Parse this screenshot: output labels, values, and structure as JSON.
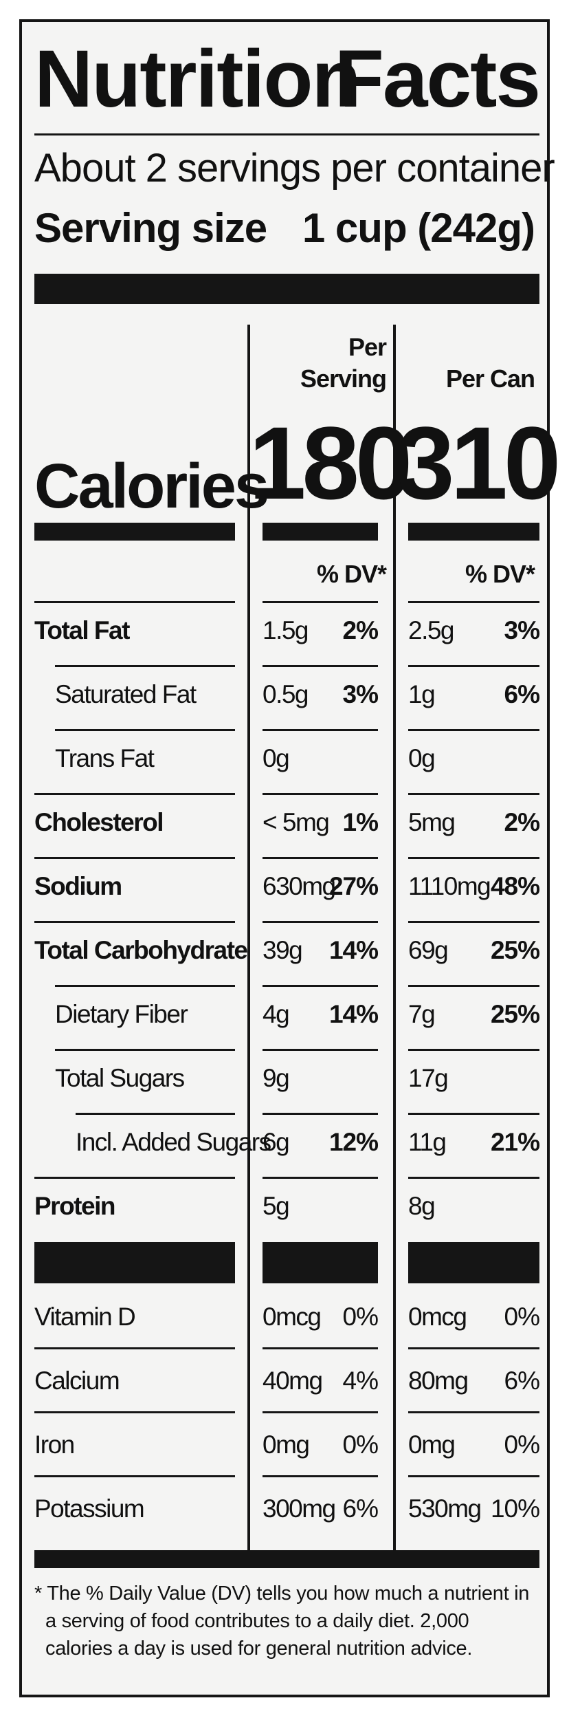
{
  "title_left": "Nutrition",
  "title_right": "Facts",
  "servings_per_container": "About 2 servings per container",
  "serving_size_label": "Serving size",
  "serving_size_value": "1 cup (242g)",
  "columns": {
    "per_serving": [
      "Per",
      "Serving"
    ],
    "per_can": "Per Can"
  },
  "calories": {
    "label": "Calories",
    "per_serving": "180",
    "per_can": "310"
  },
  "dv_header": "% DV*",
  "nutrients": [
    {
      "name": "Total Fat",
      "bold": true,
      "indent": 0,
      "serving_amount": "1.5g",
      "serving_dv": "2%",
      "can_amount": "2.5g",
      "can_dv": "3%"
    },
    {
      "name": "Saturated Fat",
      "bold": false,
      "indent": 1,
      "serving_amount": "0.5g",
      "serving_dv": "3%",
      "can_amount": "1g",
      "can_dv": "6%"
    },
    {
      "name": "Trans Fat",
      "bold": false,
      "indent": 1,
      "serving_amount": "0g",
      "serving_dv": "",
      "can_amount": "0g",
      "can_dv": ""
    },
    {
      "name": "Cholesterol",
      "bold": true,
      "indent": 0,
      "serving_amount": "< 5mg",
      "serving_dv": "1%",
      "can_amount": "5mg",
      "can_dv": "2%"
    },
    {
      "name": "Sodium",
      "bold": true,
      "indent": 0,
      "serving_amount": "630mg",
      "serving_dv": "27%",
      "can_amount": "1110mg",
      "can_dv": "48%"
    },
    {
      "name": "Total Carbohydrate",
      "bold": true,
      "indent": 0,
      "serving_amount": "39g",
      "serving_dv": "14%",
      "can_amount": "69g",
      "can_dv": "25%"
    },
    {
      "name": "Dietary Fiber",
      "bold": false,
      "indent": 1,
      "serving_amount": "4g",
      "serving_dv": "14%",
      "can_amount": "7g",
      "can_dv": "25%"
    },
    {
      "name": "Total Sugars",
      "bold": false,
      "indent": 1,
      "serving_amount": "9g",
      "serving_dv": "",
      "can_amount": "17g",
      "can_dv": ""
    },
    {
      "name": "Incl. Added Sugars",
      "bold": false,
      "indent": 2,
      "serving_amount": "6g",
      "serving_dv": "12%",
      "can_amount": "11g",
      "can_dv": "21%"
    },
    {
      "name": "Protein",
      "bold": true,
      "indent": 0,
      "serving_amount": "5g",
      "serving_dv": "",
      "can_amount": "8g",
      "can_dv": ""
    }
  ],
  "vitamins": [
    {
      "name": "Vitamin D",
      "serving_amount": "0mcg",
      "serving_dv": "0%",
      "can_amount": "0mcg",
      "can_dv": "0%"
    },
    {
      "name": "Calcium",
      "serving_amount": "40mg",
      "serving_dv": "4%",
      "can_amount": "80mg",
      "can_dv": "6%"
    },
    {
      "name": "Iron",
      "serving_amount": "0mg",
      "serving_dv": "0%",
      "can_amount": "0mg",
      "can_dv": "0%"
    },
    {
      "name": "Potassium",
      "serving_amount": "300mg",
      "serving_dv": "6%",
      "can_amount": "530mg",
      "can_dv": "10%"
    }
  ],
  "footnote": [
    "* The % Daily Value (DV) tells you how much a nutrient in",
    "a serving of food contributes to a daily diet. 2,000",
    "calories a day is used for general nutrition advice."
  ]
}
